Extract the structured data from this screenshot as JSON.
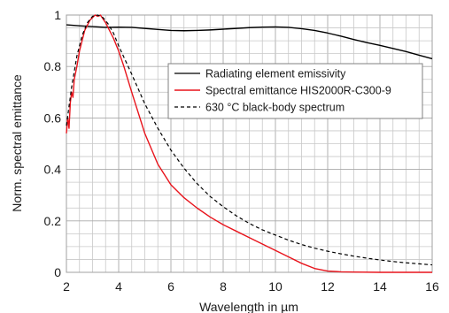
{
  "chart_data": {
    "type": "line",
    "title": "",
    "xlabel": "Wavelength in µm",
    "ylabel": "Norm. spectral emittance",
    "xlim": [
      2,
      16
    ],
    "ylim": [
      0,
      1
    ],
    "x_ticks": [
      "2",
      "4",
      "6",
      "8",
      "10",
      "12",
      "14",
      "16"
    ],
    "y_ticks": [
      "0",
      "0.2",
      "0.4",
      "0.6",
      "0.8",
      "1"
    ],
    "x_tick_values": [
      2,
      4,
      6,
      8,
      10,
      12,
      14,
      16
    ],
    "y_tick_values": [
      0,
      0.2,
      0.4,
      0.6,
      0.8,
      1
    ],
    "grid": true,
    "legend_position": "top-right",
    "series": [
      {
        "name": "Radiating element emissivity",
        "color": "#000000",
        "style": "solid",
        "points": [
          [
            2.0,
            0.962
          ],
          [
            2.5,
            0.958
          ],
          [
            3.0,
            0.955
          ],
          [
            3.5,
            0.952
          ],
          [
            4.0,
            0.953
          ],
          [
            4.5,
            0.952
          ],
          [
            5.0,
            0.948
          ],
          [
            5.5,
            0.944
          ],
          [
            6.0,
            0.94
          ],
          [
            6.5,
            0.939
          ],
          [
            7.0,
            0.94
          ],
          [
            7.5,
            0.942
          ],
          [
            8.0,
            0.945
          ],
          [
            8.5,
            0.948
          ],
          [
            9.0,
            0.951
          ],
          [
            9.5,
            0.953
          ],
          [
            10.0,
            0.954
          ],
          [
            10.5,
            0.952
          ],
          [
            11.0,
            0.947
          ],
          [
            11.5,
            0.94
          ],
          [
            12.0,
            0.93
          ],
          [
            12.5,
            0.918
          ],
          [
            13.0,
            0.905
          ],
          [
            13.5,
            0.893
          ],
          [
            14.0,
            0.882
          ],
          [
            14.5,
            0.87
          ],
          [
            15.0,
            0.858
          ],
          [
            15.5,
            0.844
          ],
          [
            16.0,
            0.83
          ]
        ]
      },
      {
        "name": "Spectral emittance HIS2000R-C300-9",
        "color": "#e8141c",
        "style": "solid",
        "points": [
          [
            2.0,
            0.54
          ],
          [
            2.05,
            0.6
          ],
          [
            2.1,
            0.56
          ],
          [
            2.15,
            0.66
          ],
          [
            2.2,
            0.7
          ],
          [
            2.25,
            0.68
          ],
          [
            2.3,
            0.75
          ],
          [
            2.4,
            0.8
          ],
          [
            2.5,
            0.86
          ],
          [
            2.6,
            0.9
          ],
          [
            2.7,
            0.94
          ],
          [
            2.8,
            0.96
          ],
          [
            2.9,
            0.98
          ],
          [
            3.0,
            0.99
          ],
          [
            3.1,
            1.0
          ],
          [
            3.2,
            0.995
          ],
          [
            3.3,
            1.0
          ],
          [
            3.4,
            0.985
          ],
          [
            3.5,
            0.97
          ],
          [
            3.6,
            0.95
          ],
          [
            3.8,
            0.91
          ],
          [
            4.0,
            0.86
          ],
          [
            4.2,
            0.8
          ],
          [
            4.5,
            0.7
          ],
          [
            5.0,
            0.54
          ],
          [
            5.5,
            0.42
          ],
          [
            6.0,
            0.34
          ],
          [
            6.5,
            0.29
          ],
          [
            7.0,
            0.25
          ],
          [
            7.5,
            0.215
          ],
          [
            8.0,
            0.185
          ],
          [
            8.5,
            0.16
          ],
          [
            9.0,
            0.135
          ],
          [
            9.5,
            0.11
          ],
          [
            10.0,
            0.085
          ],
          [
            10.5,
            0.06
          ],
          [
            11.0,
            0.035
          ],
          [
            11.5,
            0.015
          ],
          [
            12.0,
            0.005
          ],
          [
            12.5,
            0.002
          ],
          [
            13.0,
            0.001
          ],
          [
            14.0,
            0.0
          ],
          [
            15.0,
            0.0
          ],
          [
            16.0,
            0.0
          ]
        ]
      },
      {
        "name": "630 °C black-body spectrum",
        "color": "#000000",
        "style": "dashed",
        "points": [
          [
            2.0,
            0.57
          ],
          [
            2.2,
            0.72
          ],
          [
            2.4,
            0.84
          ],
          [
            2.6,
            0.92
          ],
          [
            2.8,
            0.97
          ],
          [
            3.0,
            0.995
          ],
          [
            3.2,
            1.0
          ],
          [
            3.4,
            0.99
          ],
          [
            3.6,
            0.965
          ],
          [
            3.8,
            0.93
          ],
          [
            4.0,
            0.88
          ],
          [
            4.5,
            0.77
          ],
          [
            5.0,
            0.655
          ],
          [
            5.5,
            0.56
          ],
          [
            6.0,
            0.475
          ],
          [
            6.5,
            0.405
          ],
          [
            7.0,
            0.345
          ],
          [
            7.5,
            0.295
          ],
          [
            8.0,
            0.255
          ],
          [
            8.5,
            0.22
          ],
          [
            9.0,
            0.19
          ],
          [
            9.5,
            0.165
          ],
          [
            10.0,
            0.145
          ],
          [
            10.5,
            0.125
          ],
          [
            11.0,
            0.108
          ],
          [
            11.5,
            0.094
          ],
          [
            12.0,
            0.082
          ],
          [
            12.5,
            0.072
          ],
          [
            13.0,
            0.063
          ],
          [
            13.5,
            0.055
          ],
          [
            14.0,
            0.048
          ],
          [
            14.5,
            0.042
          ],
          [
            15.0,
            0.037
          ],
          [
            15.5,
            0.033
          ],
          [
            16.0,
            0.029
          ]
        ]
      }
    ]
  }
}
